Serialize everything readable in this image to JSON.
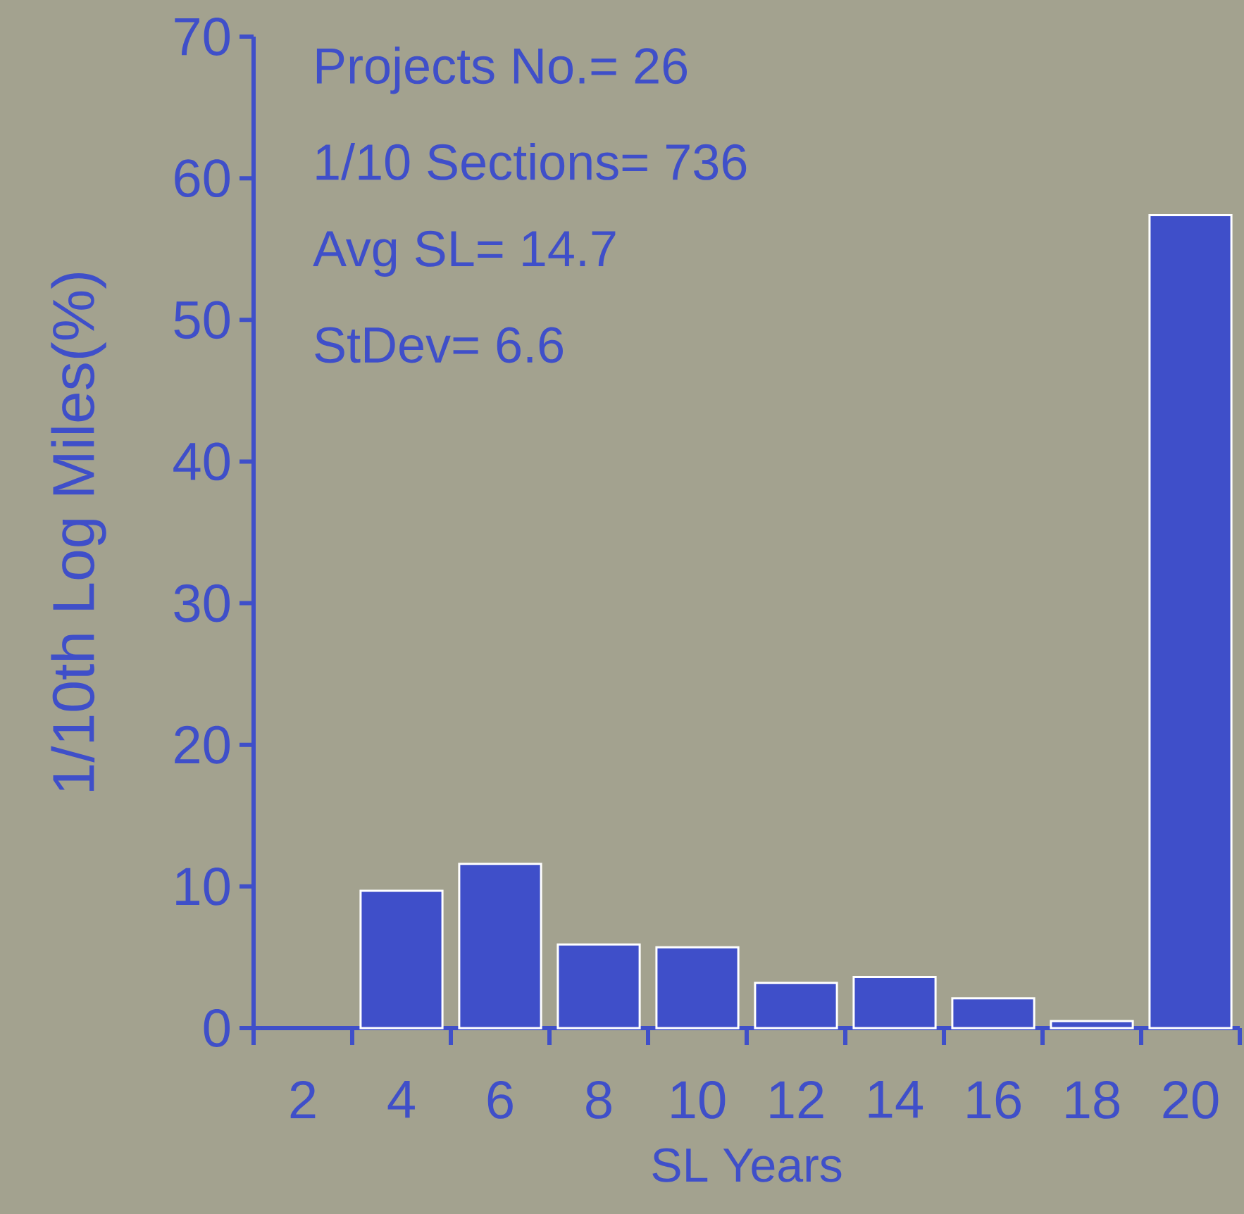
{
  "chart_data": {
    "type": "bar",
    "xlabel": "SL Years",
    "ylabel": "1/10th Log Miles(%)",
    "categories": [
      "2",
      "4",
      "6",
      "8",
      "10",
      "12",
      "14",
      "16",
      "18",
      "20"
    ],
    "values": [
      0,
      9.7,
      11.6,
      5.9,
      5.7,
      3.2,
      3.6,
      2.1,
      0.5,
      57.4
    ],
    "color": "#3f4fc9",
    "ylim": [
      0,
      70
    ],
    "yticks": [
      0,
      10,
      20,
      30,
      40,
      50,
      60,
      70
    ],
    "annotations": [
      "Projects No.= 26",
      "1/10 Sections= 736",
      "Avg SL= 14.7",
      "StDev= 6.6"
    ]
  }
}
